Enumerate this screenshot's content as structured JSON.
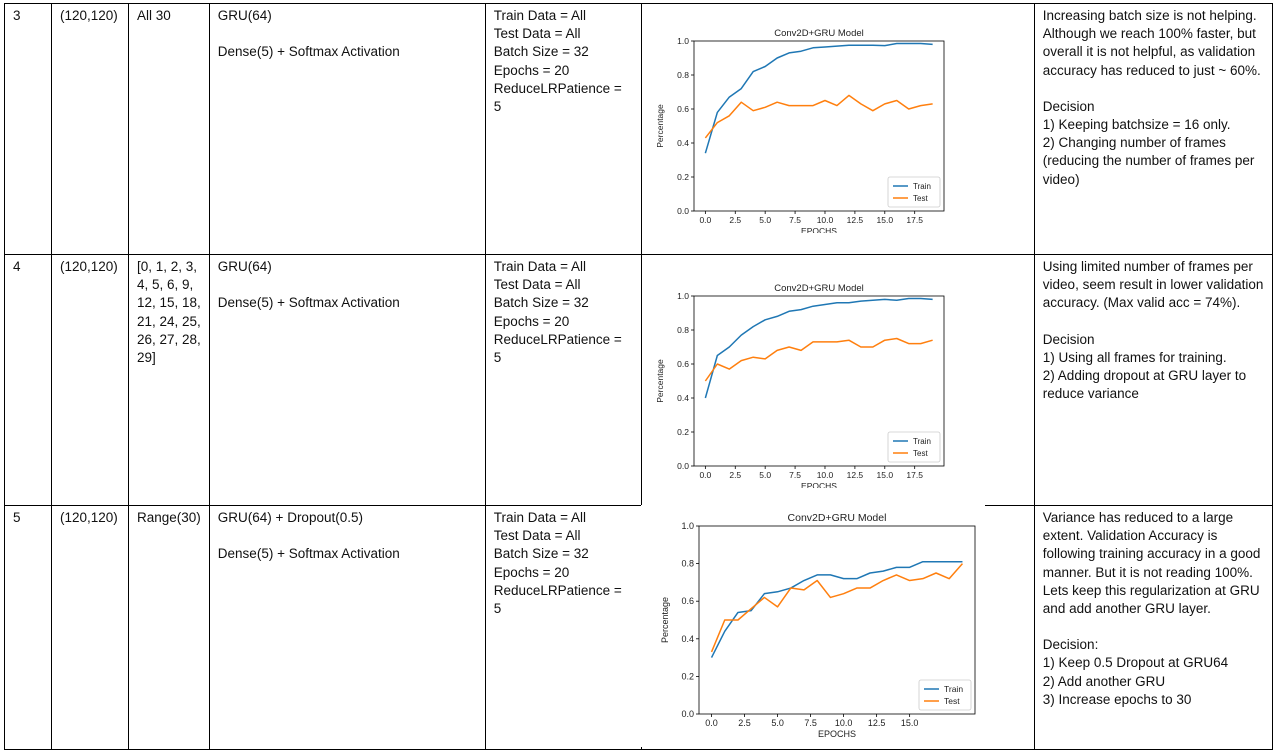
{
  "rows": [
    {
      "num": "3",
      "input_size": "(120,120)",
      "frames": "All 30",
      "model_line1": "GRU(64)",
      "model_line2": "Dense(5) + Softmax Activation",
      "params": "Train Data = All\nTest Data = All\nBatch Size = 32\nEpochs = 20\nReduceLRPatience = 5",
      "notes": "Increasing batch size is not helping. Although we reach 100% faster, but overall it is not helpful, as validation accuracy has reduced to just ~ 60%.",
      "decision": "Decision\n1) Keeping batchsize = 16 only.\n2) Changing number of frames (reducing the number of frames per video)"
    },
    {
      "num": "4",
      "input_size": "(120,120)",
      "frames": "[0, 1, 2, 3, 4, 5, 6, 9, 12, 15, 18, 21, 24, 25, 26, 27, 28, 29]",
      "model_line1": "GRU(64)",
      "model_line2": "Dense(5) + Softmax Activation",
      "params": "Train Data = All\nTest Data = All\nBatch Size = 32\nEpochs = 20\nReduceLRPatience = 5",
      "notes": "Using limited number of frames per video, seem result in lower validation accuracy. (Max valid acc = 74%).",
      "decision": "Decision\n1) Using all frames for training.\n2) Adding dropout at GRU layer to reduce variance"
    },
    {
      "num": "5",
      "input_size": "(120,120)",
      "frames": "Range(30)",
      "model_line1": "GRU(64) + Dropout(0.5)",
      "model_line2": "Dense(5) + Softmax Activation",
      "params": "Train Data = All\nTest Data = All\nBatch Size = 32\nEpochs = 20\nReduceLRPatience = 5",
      "notes": "Variance has reduced to a large extent. Validation Accuracy is following training accuracy in a good manner. But it is not reading 100%. Lets keep this regularization at GRU and add another GRU layer.",
      "decision": "Decision:\n1) Keep 0.5 Dropout at GRU64\n2) Add another GRU\n3) Increase epochs to 30"
    }
  ],
  "colors": {
    "train": "#1f77b4",
    "test": "#ff7f0e"
  },
  "chart_data": [
    {
      "type": "line",
      "title": "Conv2D+GRU Model",
      "xlabel": "EPOCHS",
      "ylabel": "Percentage",
      "xlim": [
        -0.95,
        19.95
      ],
      "ylim": [
        0.0,
        1.0
      ],
      "xticks": [
        "0.0",
        "2.5",
        "5.0",
        "7.5",
        "10.0",
        "12.5",
        "15.0",
        "17.5"
      ],
      "yticks": [
        "0.0",
        "0.2",
        "0.4",
        "0.6",
        "0.8",
        "1.0"
      ],
      "legend": "lower-right",
      "x": [
        0,
        1,
        2,
        3,
        4,
        5,
        6,
        7,
        8,
        9,
        10,
        11,
        12,
        13,
        14,
        15,
        16,
        17,
        18,
        19
      ],
      "series": [
        {
          "name": "Train",
          "values": [
            0.34,
            0.58,
            0.67,
            0.72,
            0.82,
            0.85,
            0.9,
            0.93,
            0.94,
            0.96,
            0.965,
            0.97,
            0.975,
            0.975,
            0.975,
            0.973,
            0.985,
            0.985,
            0.985,
            0.98
          ]
        },
        {
          "name": "Test",
          "values": [
            0.43,
            0.52,
            0.56,
            0.64,
            0.59,
            0.61,
            0.64,
            0.62,
            0.62,
            0.62,
            0.65,
            0.62,
            0.68,
            0.63,
            0.59,
            0.63,
            0.65,
            0.6,
            0.62,
            0.63
          ]
        }
      ]
    },
    {
      "type": "line",
      "title": "Conv2D+GRU Model",
      "xlabel": "EPOCHS",
      "ylabel": "Percentage",
      "xlim": [
        -0.95,
        19.95
      ],
      "ylim": [
        0.0,
        1.0
      ],
      "xticks": [
        "0.0",
        "2.5",
        "5.0",
        "7.5",
        "10.0",
        "12.5",
        "15.0",
        "17.5"
      ],
      "yticks": [
        "0.0",
        "0.2",
        "0.4",
        "0.6",
        "0.8",
        "1.0"
      ],
      "legend": "lower-right",
      "x": [
        0,
        1,
        2,
        3,
        4,
        5,
        6,
        7,
        8,
        9,
        10,
        11,
        12,
        13,
        14,
        15,
        16,
        17,
        18,
        19
      ],
      "series": [
        {
          "name": "Train",
          "values": [
            0.4,
            0.65,
            0.7,
            0.77,
            0.82,
            0.86,
            0.88,
            0.91,
            0.92,
            0.94,
            0.95,
            0.96,
            0.96,
            0.97,
            0.975,
            0.98,
            0.975,
            0.985,
            0.985,
            0.98
          ]
        },
        {
          "name": "Test",
          "values": [
            0.5,
            0.6,
            0.57,
            0.62,
            0.64,
            0.63,
            0.68,
            0.7,
            0.68,
            0.73,
            0.73,
            0.73,
            0.74,
            0.7,
            0.7,
            0.74,
            0.75,
            0.72,
            0.72,
            0.74
          ]
        }
      ]
    },
    {
      "type": "line",
      "title": "Conv2D+GRU Model",
      "xlabel": "EPOCHS",
      "ylabel": "Percentage",
      "xlim": [
        -0.95,
        19.95
      ],
      "ylim": [
        0.0,
        1.0
      ],
      "xticks": [
        "0.0",
        "2.5",
        "5.0",
        "7.5",
        "10.0",
        "12.5",
        "15.0"
      ],
      "yticks": [
        "0.0",
        "0.2",
        "0.4",
        "0.6",
        "0.8",
        "1.0"
      ],
      "legend": "lower-right",
      "x": [
        0,
        1,
        2,
        3,
        4,
        5,
        6,
        7,
        8,
        9,
        10,
        11,
        12,
        13,
        14,
        15,
        16,
        17,
        18,
        19
      ],
      "series": [
        {
          "name": "Train",
          "values": [
            0.3,
            0.44,
            0.54,
            0.55,
            0.64,
            0.65,
            0.67,
            0.71,
            0.74,
            0.74,
            0.72,
            0.72,
            0.75,
            0.76,
            0.78,
            0.78,
            0.81,
            0.81,
            0.81,
            0.81
          ]
        },
        {
          "name": "Test",
          "values": [
            0.33,
            0.5,
            0.5,
            0.56,
            0.62,
            0.57,
            0.67,
            0.66,
            0.71,
            0.62,
            0.64,
            0.67,
            0.67,
            0.71,
            0.74,
            0.71,
            0.72,
            0.75,
            0.72,
            0.8
          ]
        }
      ]
    }
  ]
}
